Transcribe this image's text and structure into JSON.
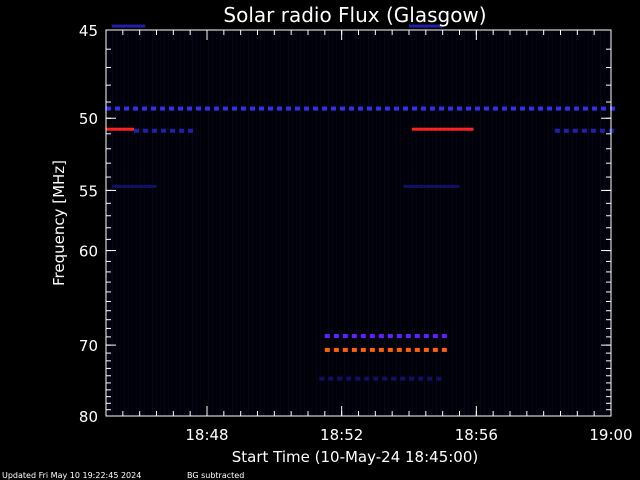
{
  "chart_data": {
    "type": "heatmap",
    "title": "Solar radio Flux (Glasgow)",
    "xlabel": "Start Time (10-May-24 18:45:00)",
    "ylabel": "Frequency [MHz]",
    "x_range": [
      "18:45:00",
      "19:00:00"
    ],
    "y_range": [
      45,
      80
    ],
    "y_inverted": true,
    "x_ticks": [
      "18:48",
      "18:52",
      "18:56",
      "19:00"
    ],
    "y_ticks": [
      45,
      50,
      55,
      60,
      70,
      80
    ],
    "bands": [
      {
        "color": "#ff2020",
        "freq": 50.7,
        "start": "18:45:00",
        "end": "18:45:50",
        "style": "solid"
      },
      {
        "color": "#ff2020",
        "freq": 50.7,
        "start": "18:54:05",
        "end": "18:55:55",
        "style": "solid"
      },
      {
        "color": "#3030ee",
        "freq": 49.4,
        "start": "18:45:00",
        "end": "19:00:00",
        "style": "dashed"
      },
      {
        "color": "#2020aa",
        "freq": 50.8,
        "start": "18:45:50",
        "end": "18:47:40",
        "style": "dashed"
      },
      {
        "color": "#2020aa",
        "freq": 50.8,
        "start": "18:58:20",
        "end": "19:00:00",
        "style": "dashed"
      },
      {
        "color": "#2020aa",
        "freq": 44.8,
        "start": "18:45:10",
        "end": "18:46:10",
        "style": "solid"
      },
      {
        "color": "#2020aa",
        "freq": 44.8,
        "start": "18:54:00",
        "end": "18:55:00",
        "style": "solid"
      },
      {
        "color": "#6020ff",
        "freq": 68.9,
        "start": "18:51:30",
        "end": "18:55:00",
        "style": "dashed"
      },
      {
        "color": "#ff6010",
        "freq": 70.6,
        "start": "18:51:30",
        "end": "18:55:00",
        "style": "dashed"
      },
      {
        "color": "#101066",
        "freq": 74.4,
        "start": "18:51:20",
        "end": "18:55:00",
        "style": "dashed"
      },
      {
        "color": "#101066",
        "freq": 54.7,
        "start": "18:45:10",
        "end": "18:46:30",
        "style": "solid"
      },
      {
        "color": "#101066",
        "freq": 54.7,
        "start": "18:53:50",
        "end": "18:55:30",
        "style": "solid"
      }
    ]
  },
  "footer": {
    "updated": "Updated Fri May 10 19:22:45 2024",
    "mode": "BG subtracted"
  }
}
